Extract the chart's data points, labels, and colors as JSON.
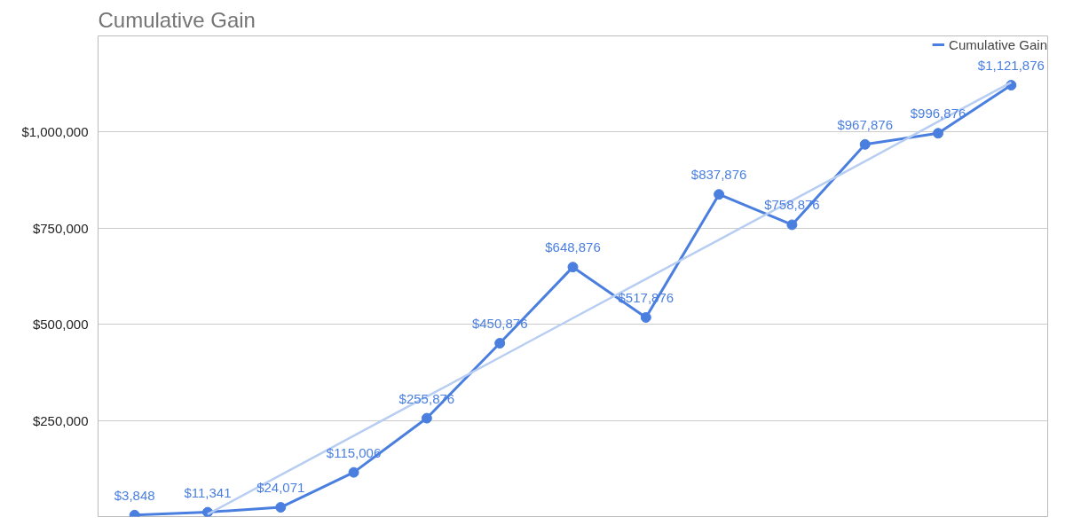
{
  "chart_data": {
    "type": "line",
    "title": "Cumulative Gain",
    "categories": [
      null,
      null,
      null,
      null,
      null,
      null,
      null,
      null,
      null,
      null,
      null,
      null,
      null
    ],
    "series": [
      {
        "name": "Cumulative Gain",
        "color": "#4a7fe0",
        "values": [
          3848,
          11341,
          24071,
          115006,
          255876,
          450876,
          648876,
          517876,
          837876,
          758876,
          967876,
          996876,
          1121876
        ],
        "value_labels": [
          "$3,848",
          "$11,341",
          "$24,071",
          "$115,006",
          "$255,876",
          "$450,876",
          "$648,876",
          "$517,876",
          "$837,876",
          "$758,876",
          "$967,876",
          "$996,876",
          "$1,121,876"
        ]
      },
      {
        "type": "line",
        "color": "#b7cdf2",
        "marker": "none",
        "values": [
          null,
          6000,
          108000,
          210000,
          312000,
          414000,
          516000,
          618000,
          720000,
          822000,
          924000,
          1027000,
          1129000
        ]
      }
    ],
    "ylim": [
      0,
      1250000
    ],
    "yticks": [
      {
        "value": 250000,
        "label": "$250,000"
      },
      {
        "value": 500000,
        "label": "$500,000"
      },
      {
        "value": 750000,
        "label": "$750,000"
      },
      {
        "value": 1000000,
        "label": "$1,000,000"
      }
    ],
    "grid": "y",
    "legend": "top right",
    "marker": "circle",
    "tick_labels": "y"
  }
}
